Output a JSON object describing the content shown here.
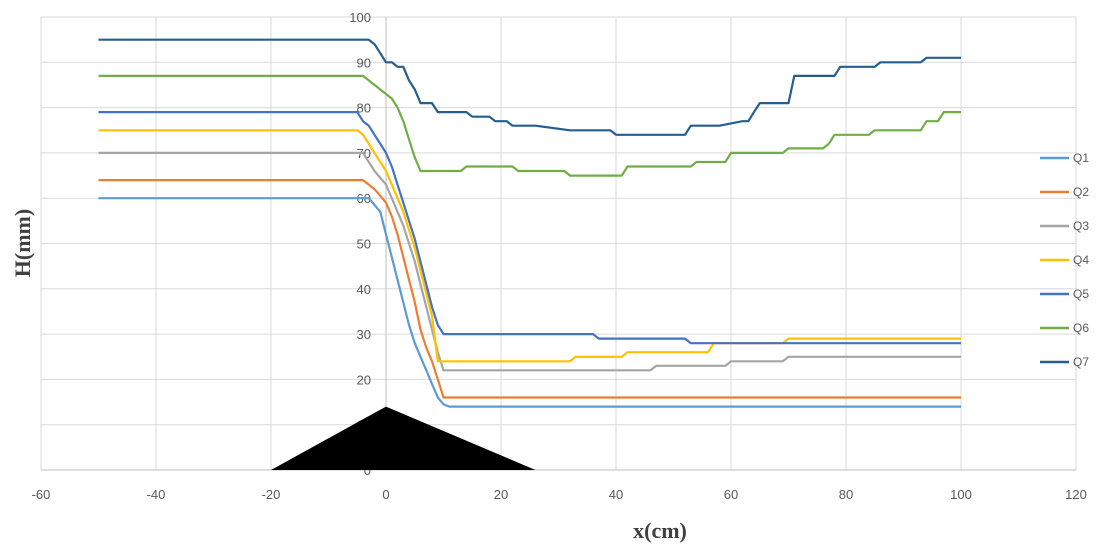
{
  "chart_data": {
    "type": "line",
    "title": "",
    "xlabel": "x(cm)",
    "ylabel": "H(mm)",
    "xlim": [
      -60,
      120
    ],
    "ylim": [
      0,
      100
    ],
    "xticks": [
      -60,
      -40,
      -20,
      0,
      20,
      40,
      60,
      80,
      100,
      120
    ],
    "yticks": [
      0,
      10,
      20,
      30,
      40,
      50,
      60,
      70,
      80,
      90,
      100
    ],
    "grid": true,
    "legend": "right",
    "obstacle": {
      "shape": "triangle",
      "base": [
        -20,
        26
      ],
      "apex": [
        0,
        14
      ],
      "color": "#000000"
    },
    "series": [
      {
        "name": "Q1",
        "color": "#5b9bd5",
        "x": [
          -50,
          -3,
          -1,
          0,
          1,
          2,
          3,
          4,
          5,
          6,
          7,
          8,
          9,
          10,
          11,
          100
        ],
        "y": [
          60,
          60,
          57,
          52,
          47,
          42,
          37,
          32,
          28,
          25,
          22,
          19,
          16,
          14.5,
          14,
          14
        ]
      },
      {
        "name": "Q2",
        "color": "#ed7d31",
        "x": [
          -50,
          -4,
          -2,
          0,
          1,
          2,
          3,
          4,
          5,
          6,
          7,
          8,
          9,
          10,
          11,
          100
        ],
        "y": [
          64,
          64,
          62,
          59,
          56,
          52,
          47,
          42,
          37,
          31,
          27,
          24,
          20,
          16,
          16,
          16
        ]
      },
      {
        "name": "Q3",
        "color": "#a5a5a5",
        "x": [
          -50,
          -4,
          -3,
          -2,
          0,
          1,
          2,
          3,
          4,
          5,
          6,
          7,
          8,
          9,
          10,
          46,
          47,
          59,
          60,
          69,
          70,
          100
        ],
        "y": [
          70,
          70,
          68,
          66,
          63,
          60,
          57,
          54,
          50,
          46,
          41,
          36,
          31,
          26,
          22,
          22,
          23,
          23,
          24,
          24,
          25,
          25
        ]
      },
      {
        "name": "Q4",
        "color": "#ffc000",
        "x": [
          -50,
          -5,
          -4,
          -3,
          -2,
          -1,
          0,
          1,
          2,
          3,
          4,
          5,
          6,
          7,
          8,
          9,
          32,
          33,
          41,
          42,
          56,
          57,
          69,
          70,
          100
        ],
        "y": [
          75,
          75,
          74,
          72,
          70,
          68,
          66,
          63,
          60,
          57,
          53,
          49,
          44,
          39,
          34,
          24,
          24,
          25,
          25,
          26,
          26,
          28,
          28,
          29,
          29
        ]
      },
      {
        "name": "Q5",
        "color": "#4472c4",
        "x": [
          -50,
          -5,
          -4,
          -3,
          -2,
          -1,
          0,
          1,
          2,
          3,
          4,
          5,
          6,
          7,
          8,
          9,
          10,
          36,
          37,
          52,
          53,
          100
        ],
        "y": [
          79,
          79,
          77,
          76,
          74,
          72,
          70,
          67,
          63,
          59,
          55,
          51,
          46,
          41,
          36,
          32,
          30,
          30,
          29,
          29,
          28,
          28
        ]
      },
      {
        "name": "Q6",
        "color": "#70ad47",
        "x": [
          -50,
          -4,
          -3,
          -2,
          -1,
          0,
          1,
          2,
          3,
          4,
          5,
          6,
          13,
          14,
          22,
          23,
          31,
          32,
          41,
          42,
          53,
          54,
          59,
          60,
          69,
          70,
          76,
          77,
          78,
          84,
          85,
          87,
          88,
          93,
          94,
          96,
          97,
          100
        ],
        "y": [
          87,
          87,
          86,
          85,
          84,
          83,
          82,
          80,
          77,
          73,
          69,
          66,
          66,
          67,
          67,
          66,
          66,
          65,
          65,
          67,
          67,
          68,
          68,
          70,
          70,
          71,
          71,
          72,
          74,
          74,
          75,
          75,
          75,
          75,
          77,
          77,
          79,
          79
        ]
      },
      {
        "name": "Q7",
        "color": "#255e91",
        "x": [
          -50,
          -3,
          -2,
          -1,
          0,
          1,
          2,
          3,
          4,
          5,
          6,
          8,
          9,
          14,
          15,
          18,
          19,
          21,
          22,
          25,
          26,
          32,
          33,
          39,
          40,
          52,
          53,
          57,
          58,
          62,
          63,
          64,
          65,
          70,
          71,
          72,
          77,
          78,
          79,
          85,
          86,
          93,
          94,
          100
        ],
        "y": [
          95,
          95,
          94,
          92,
          90,
          90,
          89,
          89,
          86,
          84,
          81,
          81,
          79,
          79,
          78,
          78,
          77,
          77,
          76,
          76,
          76,
          75,
          75,
          75,
          74,
          74,
          76,
          76,
          76,
          77,
          77,
          79,
          81,
          81,
          87,
          87,
          87,
          87,
          89,
          89,
          90,
          90,
          91,
          91
        ]
      }
    ]
  }
}
